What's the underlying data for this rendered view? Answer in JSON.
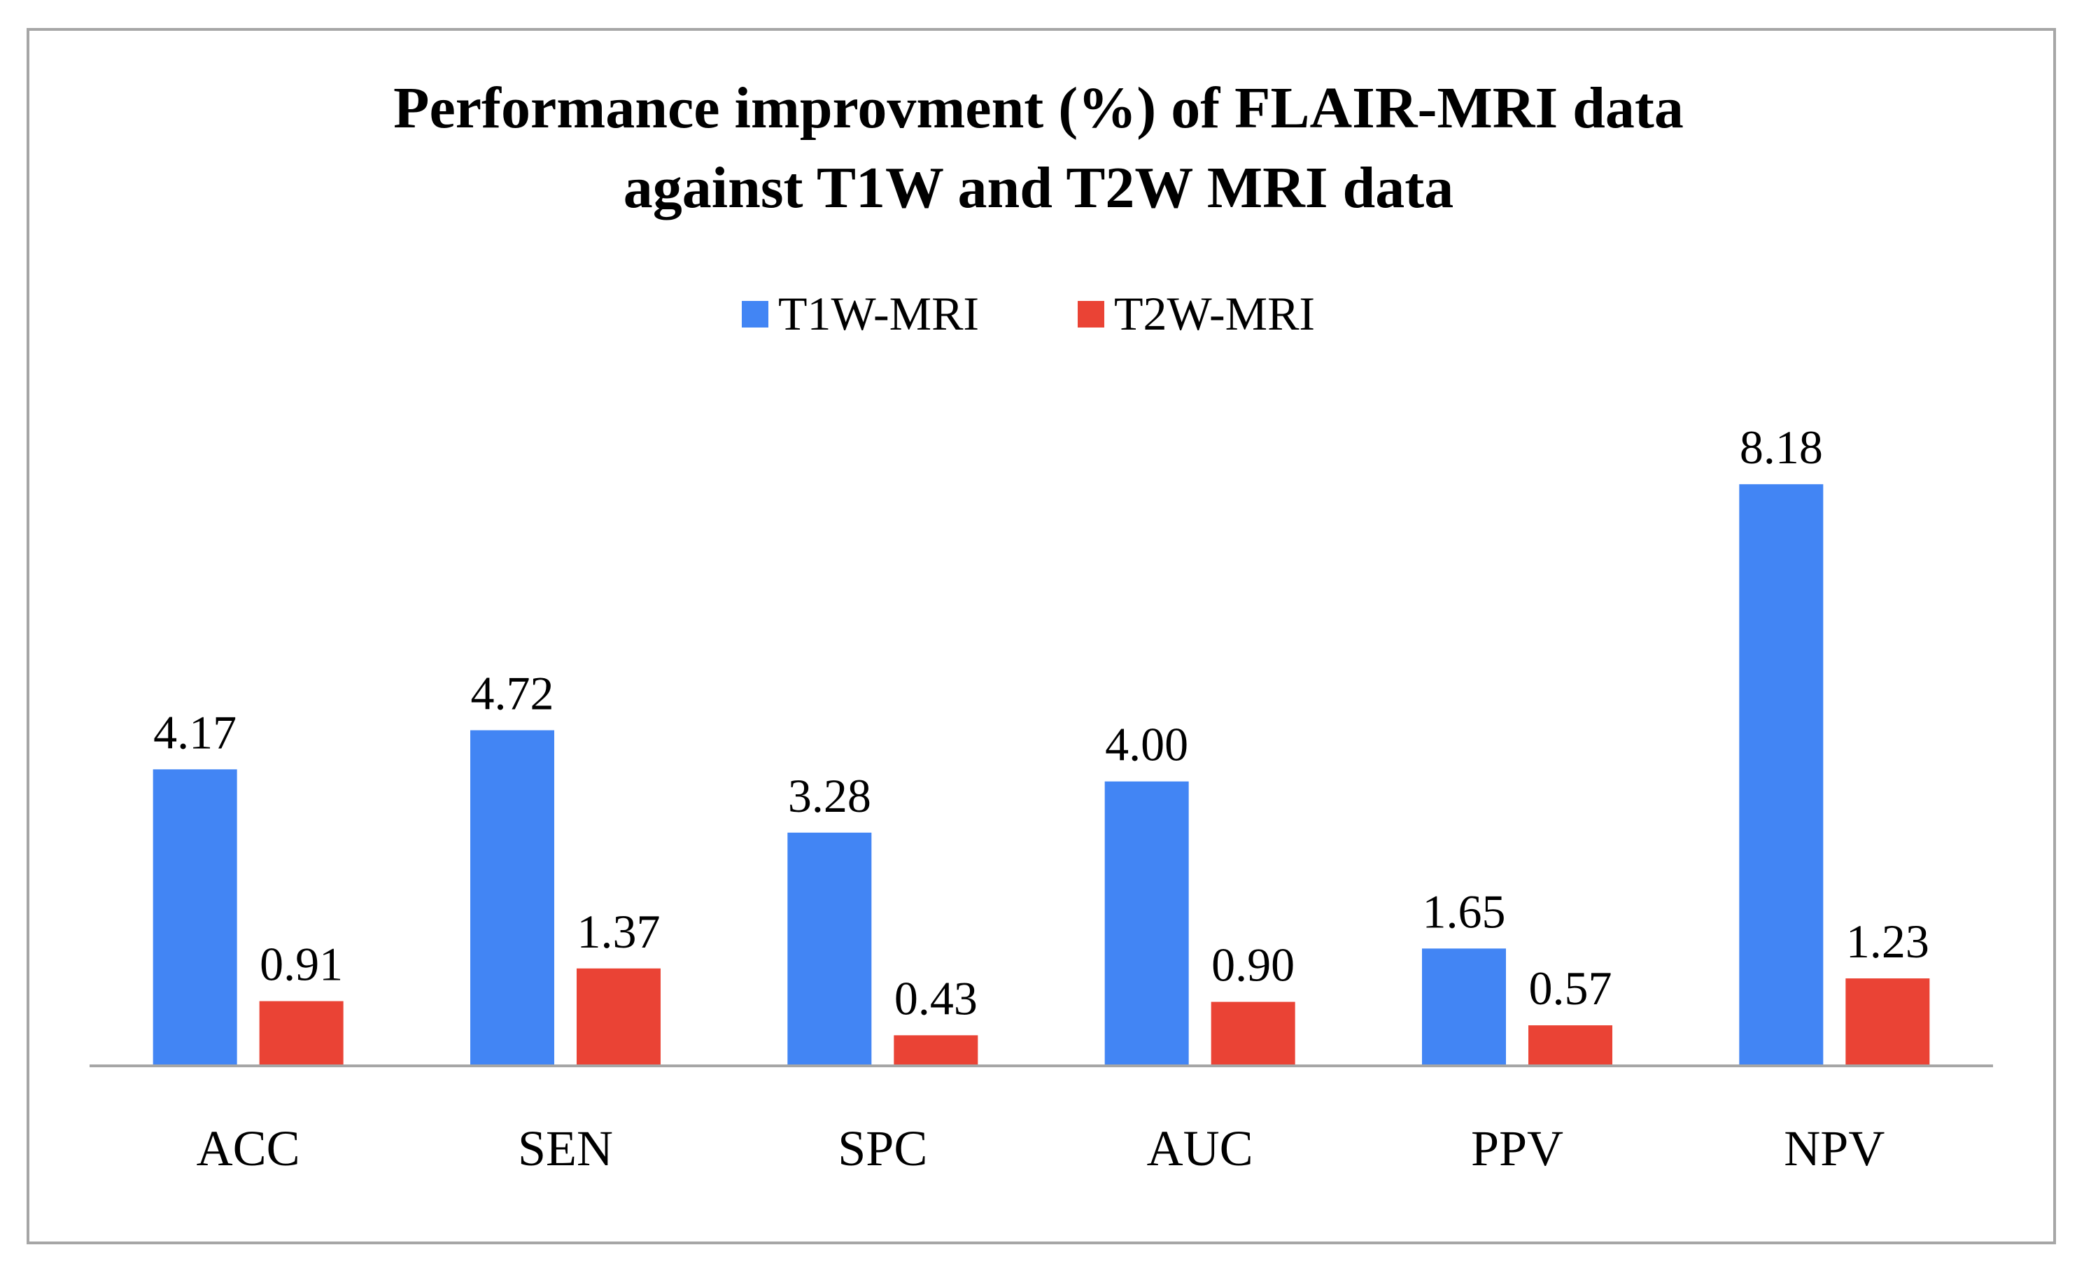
{
  "chart_data": {
    "type": "bar",
    "title_lines": [
      "Performance improvment (%)  of FLAIR-MRI data",
      "against T1W and T2W MRI data"
    ],
    "categories": [
      "ACC",
      "SEN",
      "SPC",
      "AUC",
      "PPV",
      "NPV"
    ],
    "series": [
      {
        "name": "T1W-MRI",
        "color": "#4285f4",
        "values": [
          4.17,
          4.72,
          3.28,
          4.0,
          1.65,
          8.18
        ],
        "labels": [
          "4.17",
          "4.72",
          "3.28",
          "4.00",
          "1.65",
          "8.18"
        ]
      },
      {
        "name": "T2W-MRI",
        "color": "#ea4335",
        "values": [
          0.91,
          1.37,
          0.43,
          0.9,
          0.57,
          1.23
        ],
        "labels": [
          "0.91",
          "1.37",
          "0.43",
          "0.90",
          "0.57",
          "1.23"
        ]
      }
    ],
    "ylim": [
      0,
      10
    ],
    "legend_position": "top",
    "grid": false,
    "axis_color": "#a6a6a6"
  }
}
